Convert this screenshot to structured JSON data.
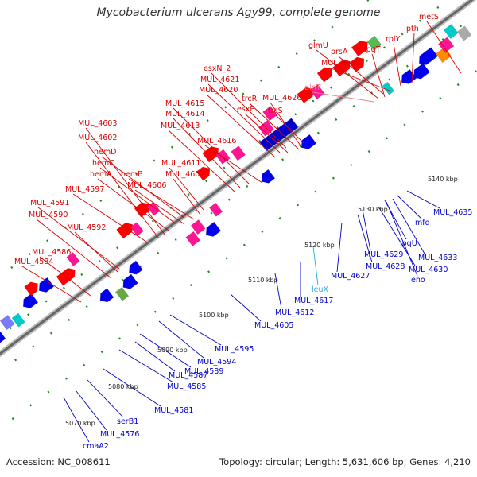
{
  "title": "Mycobacterium ulcerans Agy99, complete genome",
  "footer": {
    "accession": "Accession: NC_008611",
    "summary": "Topology: circular; Length: 5,631,606 bp; Genes: 4,210"
  },
  "colors": {
    "forward_label": "#dd0000",
    "reverse_label": "#0000cc",
    "rna_forward_label": "#f08080",
    "rna_reverse_label": "#22aadd",
    "backbone": "#888888",
    "forward_gene": "#ff0000",
    "reverse_gene": "#0000ee",
    "gc_dots": "#228822"
  },
  "ticks": [
    "5070 kbp",
    "5080 kbp",
    "5090 kbp",
    "5100 kbp",
    "5110 kbp",
    "5120 kbp",
    "5130 kbp",
    "5140 kbp"
  ],
  "forward_labels": [
    "MUL_4584",
    "MUL_4586",
    "MUL_4592",
    "MUL_4590",
    "MUL_4591",
    "MUL_4597",
    "hemA",
    "hemC",
    "hemD",
    "MUL_4602",
    "MUL_4603",
    "hemB",
    "MUL_4607",
    "MUL_4606",
    "MUL_4611",
    "MUL_4613",
    "MUL_4614",
    "MUL_4615",
    "MUL_4616",
    "MUL_4620",
    "MUL_4621",
    "esxN_2",
    "esxP",
    "trcR",
    "trcS",
    "MUL_4626",
    "glnT",
    "glmU",
    "prsA",
    "MUL_4639",
    "lpqT",
    "rplY",
    "pth",
    "metS"
  ],
  "reverse_labels": [
    "cmaA2",
    "MUL_4576",
    "serB1",
    "MUL_4581",
    "MUL_4585",
    "MUL_4587",
    "MUL_4589",
    "MUL_4594",
    "MUL_4595",
    "MUL_4605",
    "MUL_4612",
    "MUL_4617",
    "leuX",
    "MUL_4627",
    "MUL_4628",
    "MUL_4629",
    "MUL_4630",
    "eno",
    "MUL_4633",
    "lpqU",
    "mfd",
    "MUL_4635"
  ]
}
